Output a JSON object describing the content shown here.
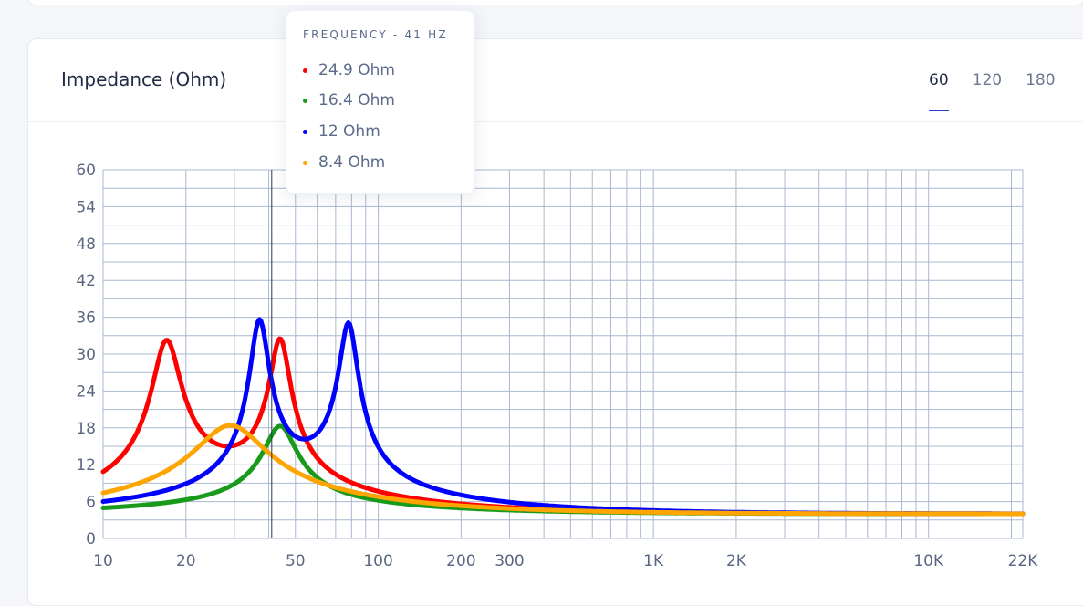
{
  "card": {
    "title": "Impedance (Ohm)",
    "range_tabs": [
      "60",
      "120",
      "180"
    ],
    "active_range": "60"
  },
  "tooltip": {
    "header": "FREQUENCY - 41 HZ",
    "rows": [
      {
        "label": "24.9 Ohm",
        "color": "#ff0000"
      },
      {
        "label": "16.4 Ohm",
        "color": "#1a9a1a"
      },
      {
        "label": "12 Ohm",
        "color": "#0000ff"
      },
      {
        "label": "8.4 Ohm",
        "color": "#ffa500"
      }
    ]
  },
  "chart_data": {
    "type": "line",
    "x_scale": "log",
    "xlim": [
      10,
      22000
    ],
    "ylim": [
      0,
      60
    ],
    "y_ticks": [
      0,
      6,
      12,
      18,
      24,
      30,
      36,
      42,
      48,
      54,
      60
    ],
    "x_tick_labels": [
      {
        "value": 10,
        "label": "10"
      },
      {
        "value": 20,
        "label": "20"
      },
      {
        "value": 50,
        "label": "50"
      },
      {
        "value": 100,
        "label": "100"
      },
      {
        "value": 200,
        "label": "200"
      },
      {
        "value": 300,
        "label": "300"
      },
      {
        "value": 1000,
        "label": "1K"
      },
      {
        "value": 2000,
        "label": "2K"
      },
      {
        "value": 10000,
        "label": "10K"
      },
      {
        "value": 22000,
        "label": "22K"
      }
    ],
    "grid": true,
    "cursor_x": 41,
    "series": [
      {
        "color": "#ff0000",
        "peaks": [
          {
            "f": 17,
            "z": 30.2,
            "q": 4
          },
          {
            "f": 44,
            "z": 29.6,
            "q": 5.5
          }
        ],
        "baseline": 4.0
      },
      {
        "color": "#1a9a1a",
        "peaks": [
          {
            "f": 44,
            "z": 18.3,
            "q": 3.5
          }
        ],
        "baseline": 4.0
      },
      {
        "color": "#0000ff",
        "peaks": [
          {
            "f": 37,
            "z": 32.8,
            "q": 6
          },
          {
            "f": 78,
            "z": 32.2,
            "q": 6
          }
        ],
        "baseline": 4.0
      },
      {
        "color": "#ffa500",
        "peaks": [
          {
            "f": 29,
            "z": 18.4,
            "q": 1.6
          }
        ],
        "baseline": 4.0
      }
    ]
  }
}
